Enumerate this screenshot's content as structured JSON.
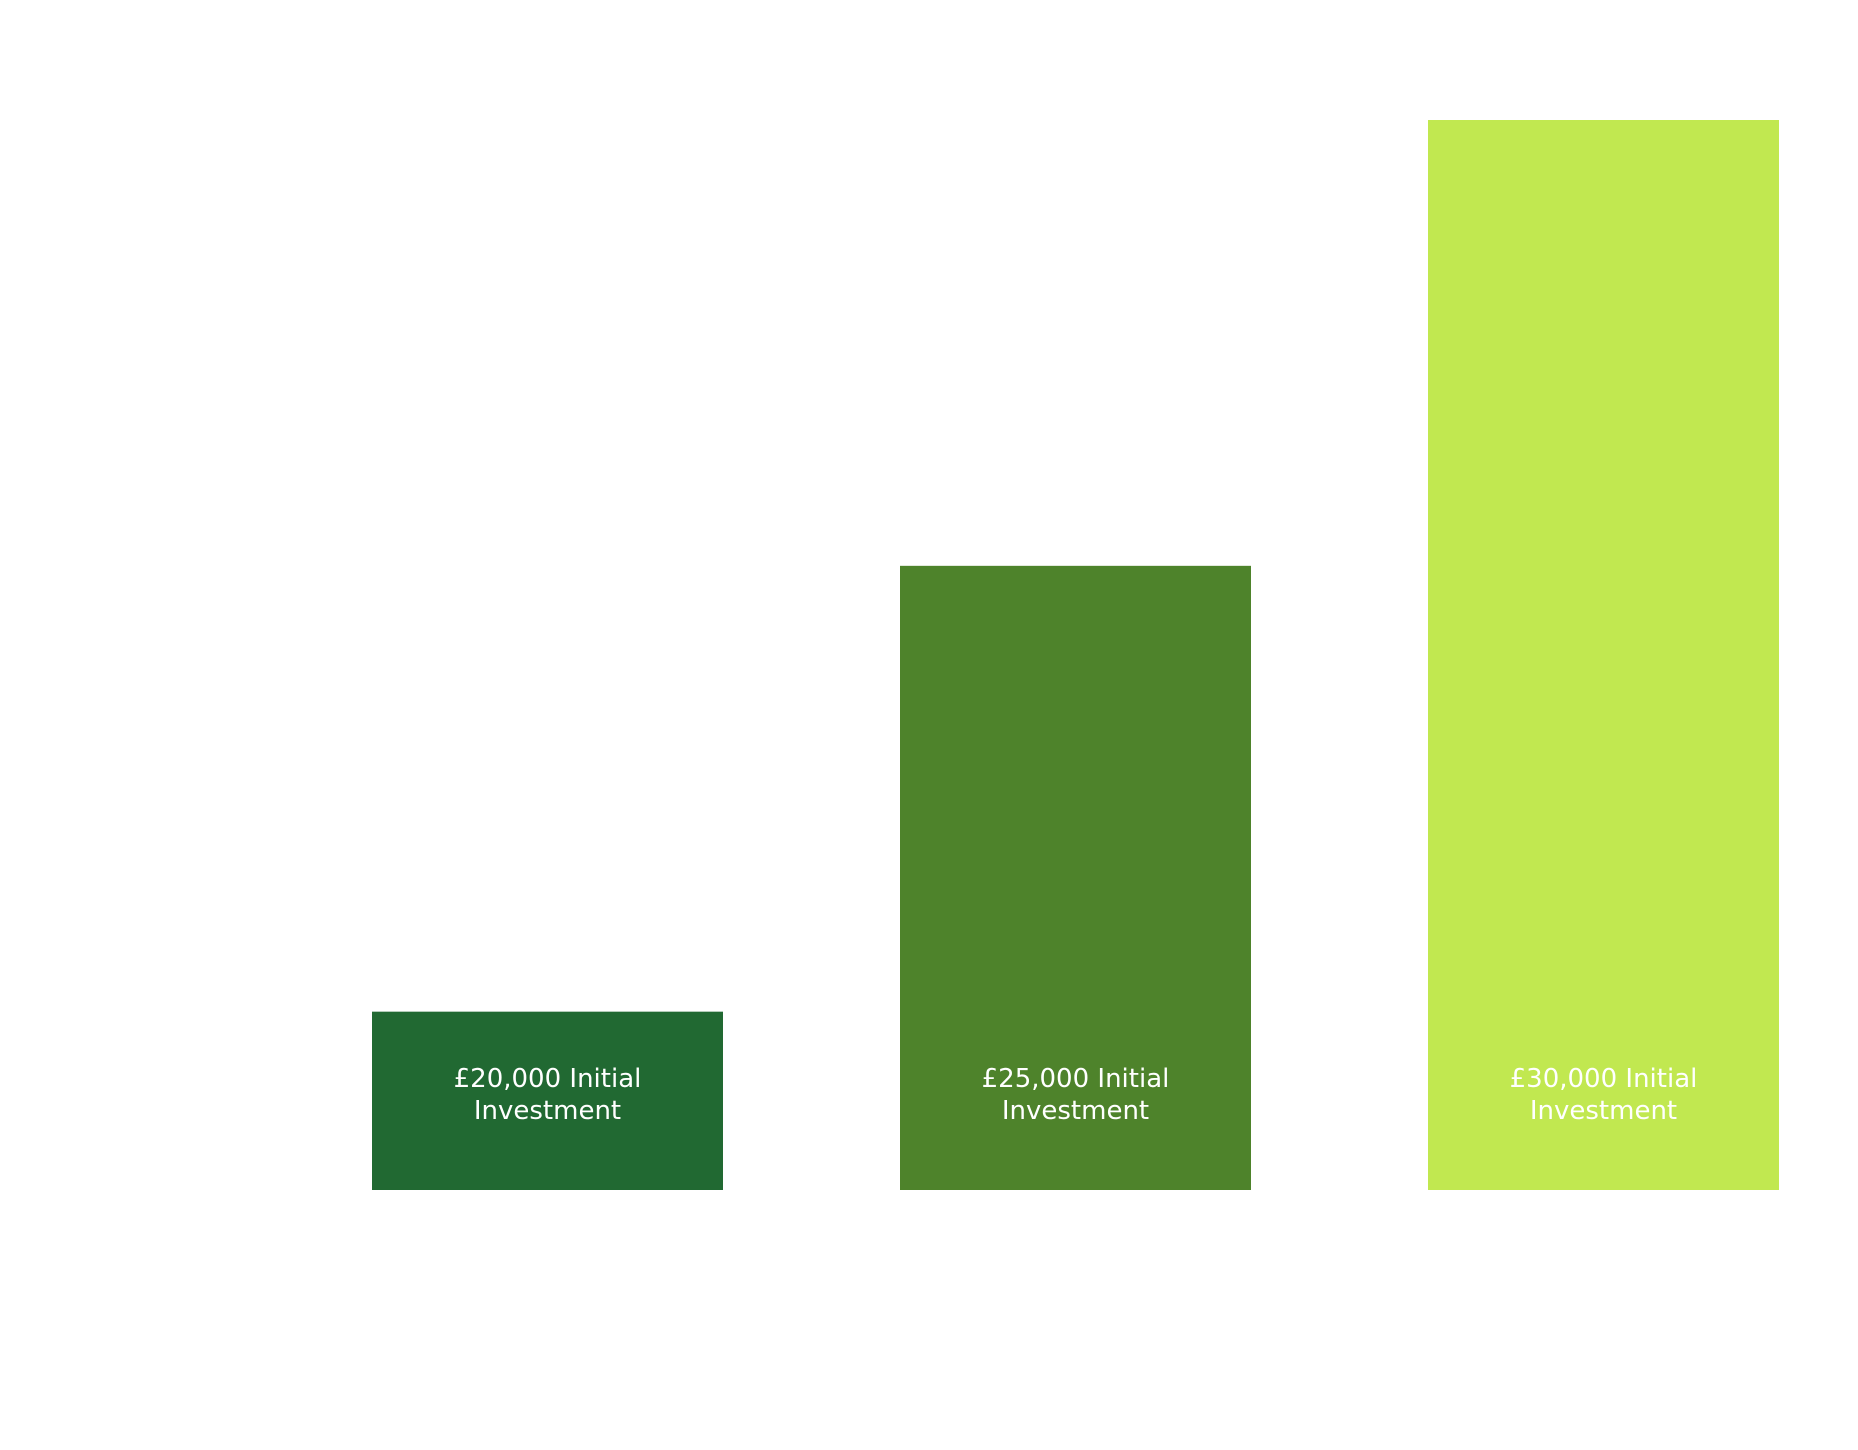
{
  "chart_data": {
    "type": "bar",
    "title": "",
    "xlabel": "",
    "ylabel": "",
    "grid": false,
    "legend": "none",
    "categories": [
      "£20,000 Initial Investment",
      "£25,000 Initial Investment",
      "£30,000 Initial Investment"
    ],
    "bars": [
      {
        "label_lines": [
          "£20,000 Initial",
          "Investment"
        ],
        "color": "#216932"
      },
      {
        "label_lines": [
          "£25,000 Initial",
          "Investment"
        ],
        "color": "#4e832b"
      },
      {
        "label_lines": [
          "£30,000 Initial",
          "Investment"
        ],
        "color": "#c1e850"
      }
    ],
    "values": [
      20000,
      25000,
      30000
    ],
    "ylim": [
      18000,
      30000
    ]
  }
}
